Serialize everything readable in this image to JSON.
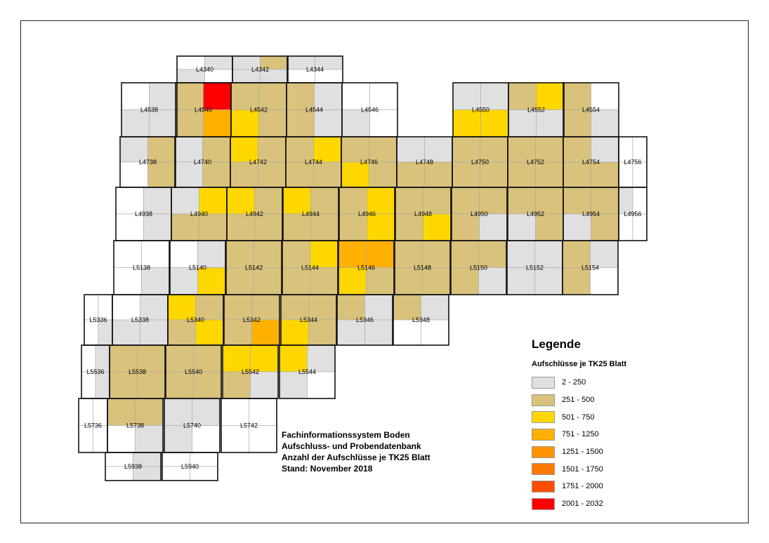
{
  "legend": {
    "title": "Legende",
    "subtitle": "Aufschlüsse je TK25 Blatt",
    "classes": [
      {
        "label": "2 - 250",
        "color": "#e0e0e0"
      },
      {
        "label": "251 - 500",
        "color": "#d9c27b"
      },
      {
        "label": "501 - 750",
        "color": "#ffd700"
      },
      {
        "label": "751 - 1250",
        "color": "#ffb000"
      },
      {
        "label": "1251 - 1500",
        "color": "#ff9400"
      },
      {
        "label": "1501 - 1750",
        "color": "#ff7800"
      },
      {
        "label": "1751 - 2000",
        "color": "#ff4e00"
      },
      {
        "label": "2001 - 2032",
        "color": "#ff0000"
      }
    ]
  },
  "info": {
    "line1": "Fachinformationssystem Boden",
    "line2": "Aufschluss- und Probendatenbank",
    "line3": "Anzahl der Aufschlüsse je TK25 Blatt",
    "line4": "Stand: November 2018"
  },
  "map": {
    "sheets": [
      {
        "id": "L4340",
        "q": [
          "w",
          "g",
          "g",
          "w"
        ]
      },
      {
        "id": "L4342",
        "q": [
          "g",
          "t",
          "g",
          "g"
        ]
      },
      {
        "id": "L4344",
        "q": [
          "g",
          "g",
          "w",
          "w"
        ]
      },
      {
        "id": "L4538",
        "q": [
          "w",
          "g",
          "g",
          "g"
        ]
      },
      {
        "id": "L4540",
        "q": [
          "t",
          "r",
          "t",
          "o"
        ]
      },
      {
        "id": "L4542",
        "q": [
          "t",
          "t",
          "y",
          "t"
        ]
      },
      {
        "id": "L4544",
        "q": [
          "t",
          "g",
          "t",
          "g"
        ]
      },
      {
        "id": "L4546",
        "q": [
          "w",
          "w",
          "g",
          "w"
        ]
      },
      {
        "id": "L4550",
        "q": [
          "g",
          "g",
          "y",
          "y"
        ]
      },
      {
        "id": "L4552",
        "q": [
          "t",
          "y",
          "g",
          "g"
        ]
      },
      {
        "id": "L4554",
        "q": [
          "t",
          "w",
          "t",
          "g"
        ]
      },
      {
        "id": "L4738",
        "q": [
          "g",
          "t",
          "w",
          "t"
        ]
      },
      {
        "id": "L4740",
        "q": [
          "g",
          "t",
          "g",
          "t"
        ]
      },
      {
        "id": "L4742",
        "q": [
          "y",
          "t",
          "t",
          "t"
        ]
      },
      {
        "id": "L4744",
        "q": [
          "t",
          "y",
          "t",
          "t"
        ]
      },
      {
        "id": "L4746",
        "q": [
          "t",
          "t",
          "y",
          "t"
        ]
      },
      {
        "id": "L4748",
        "q": [
          "g",
          "g",
          "t",
          "t"
        ]
      },
      {
        "id": "L4750",
        "q": [
          "t",
          "t",
          "t",
          "t"
        ]
      },
      {
        "id": "L4752",
        "q": [
          "t",
          "t",
          "t",
          "t"
        ]
      },
      {
        "id": "L4754",
        "q": [
          "t",
          "g",
          "t",
          "t"
        ]
      },
      {
        "id": "L4756",
        "q": [
          "w",
          "w",
          "w",
          "w"
        ]
      },
      {
        "id": "L4938",
        "q": [
          "w",
          "g",
          "w",
          "g"
        ]
      },
      {
        "id": "L4940",
        "q": [
          "g",
          "y",
          "t",
          "t"
        ]
      },
      {
        "id": "L4942",
        "q": [
          "y",
          "t",
          "t",
          "t"
        ]
      },
      {
        "id": "L4944",
        "q": [
          "y",
          "t",
          "t",
          "t"
        ]
      },
      {
        "id": "L4946",
        "q": [
          "t",
          "y",
          "t",
          "y"
        ]
      },
      {
        "id": "L4948",
        "q": [
          "t",
          "t",
          "t",
          "y"
        ]
      },
      {
        "id": "L4950",
        "q": [
          "t",
          "t",
          "t",
          "g"
        ]
      },
      {
        "id": "L4952",
        "q": [
          "t",
          "t",
          "g",
          "t"
        ]
      },
      {
        "id": "L4954",
        "q": [
          "t",
          "t",
          "g",
          "t"
        ]
      },
      {
        "id": "L4956",
        "q": [
          "g",
          "w",
          "w",
          "w"
        ]
      },
      {
        "id": "L5138",
        "q": [
          "w",
          "w",
          "w",
          "g"
        ]
      },
      {
        "id": "L5140",
        "q": [
          "w",
          "g",
          "g",
          "y"
        ]
      },
      {
        "id": "L5142",
        "q": [
          "t",
          "t",
          "t",
          "t"
        ]
      },
      {
        "id": "L5144",
        "q": [
          "t",
          "y",
          "t",
          "t"
        ]
      },
      {
        "id": "L5146",
        "q": [
          "o",
          "o",
          "y",
          "t"
        ]
      },
      {
        "id": "L5148",
        "q": [
          "t",
          "t",
          "t",
          "t"
        ]
      },
      {
        "id": "L5150",
        "q": [
          "t",
          "t",
          "t",
          "g"
        ]
      },
      {
        "id": "L5152",
        "q": [
          "g",
          "g",
          "g",
          "g"
        ]
      },
      {
        "id": "L5154",
        "q": [
          "t",
          "g",
          "t",
          "w"
        ]
      },
      {
        "id": "L5336",
        "q": [
          "w",
          "w",
          "w",
          "g"
        ]
      },
      {
        "id": "L5338",
        "q": [
          "w",
          "g",
          "g",
          "g"
        ]
      },
      {
        "id": "L5340",
        "q": [
          "y",
          "t",
          "t",
          "y"
        ]
      },
      {
        "id": "L5342",
        "q": [
          "t",
          "t",
          "t",
          "o"
        ]
      },
      {
        "id": "L5344",
        "q": [
          "t",
          "t",
          "y",
          "t"
        ]
      },
      {
        "id": "L5346",
        "q": [
          "t",
          "g",
          "g",
          "g"
        ]
      },
      {
        "id": "L5348",
        "q": [
          "t",
          "g",
          "w",
          "w"
        ]
      },
      {
        "id": "L5536",
        "q": [
          "w",
          "g",
          "w",
          "g"
        ]
      },
      {
        "id": "L5538",
        "q": [
          "t",
          "t",
          "t",
          "t"
        ]
      },
      {
        "id": "L5540",
        "q": [
          "t",
          "t",
          "t",
          "t"
        ]
      },
      {
        "id": "L5542",
        "q": [
          "y",
          "y",
          "t",
          "g"
        ]
      },
      {
        "id": "L5544",
        "q": [
          "y",
          "g",
          "g",
          "w"
        ]
      },
      {
        "id": "L5736",
        "q": [
          "w",
          "w",
          "w",
          "w"
        ]
      },
      {
        "id": "L5738",
        "q": [
          "t",
          "t",
          "w",
          "g"
        ]
      },
      {
        "id": "L5740",
        "q": [
          "g",
          "g",
          "g",
          "w"
        ]
      },
      {
        "id": "L5742",
        "q": [
          "w",
          "w",
          "w",
          "w"
        ]
      },
      {
        "id": "L5938",
        "q": [
          "w",
          "g",
          "w",
          "g"
        ]
      },
      {
        "id": "L5940",
        "q": [
          "w",
          "w",
          "w",
          "w"
        ]
      }
    ]
  }
}
